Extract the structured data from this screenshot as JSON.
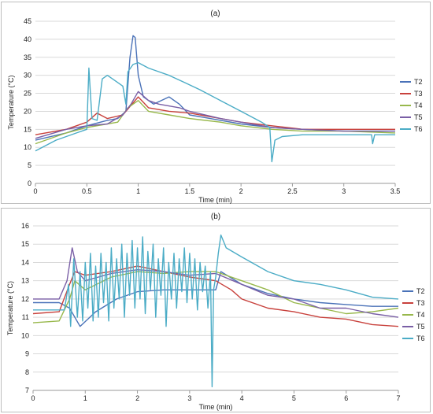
{
  "chart_data": [
    {
      "type": "line",
      "title": "(a)",
      "xlabel": "Time (min)",
      "ylabel": "Temperature (°C)",
      "xlim": [
        0,
        3.5
      ],
      "ylim": [
        0,
        45
      ],
      "xticks": [
        0,
        0.5,
        1,
        1.5,
        2,
        2.5,
        3,
        3.5
      ],
      "xtick_labels": [
        "0",
        "0.5",
        "1",
        "1.5",
        "2",
        "2.5",
        "3",
        "3.5"
      ],
      "yticks": [
        0,
        5,
        10,
        15,
        20,
        25,
        30,
        35,
        40,
        45
      ],
      "ytick_labels": [
        "0",
        "5",
        "10",
        "15",
        "20",
        "25",
        "30",
        "35",
        "40",
        "45"
      ],
      "grid": "horizontal",
      "legend": "right",
      "series": [
        {
          "name": "T2",
          "color": "#4a72b8",
          "points": [
            [
              0,
              12
            ],
            [
              0.3,
              14
            ],
            [
              0.5,
              16
            ],
            [
              0.7,
              17.5
            ],
            [
              0.8,
              18
            ],
            [
              0.88,
              20
            ],
            [
              0.92,
              35
            ],
            [
              0.95,
              41
            ],
            [
              0.97,
              40.5
            ],
            [
              1.0,
              30
            ],
            [
              1.05,
              24
            ],
            [
              1.15,
              22
            ],
            [
              1.3,
              24
            ],
            [
              1.4,
              22
            ],
            [
              1.5,
              19
            ],
            [
              1.7,
              18
            ],
            [
              2.0,
              16.5
            ],
            [
              2.3,
              15.5
            ],
            [
              2.6,
              15
            ],
            [
              3.0,
              14.5
            ],
            [
              3.5,
              14.5
            ]
          ]
        },
        {
          "name": "T3",
          "color": "#c8413c",
          "points": [
            [
              0,
              13.5
            ],
            [
              0.3,
              15
            ],
            [
              0.5,
              17
            ],
            [
              0.6,
              19.5
            ],
            [
              0.7,
              18
            ],
            [
              0.85,
              19
            ],
            [
              1.0,
              24
            ],
            [
              1.1,
              21
            ],
            [
              1.3,
              20
            ],
            [
              1.5,
              19.5
            ],
            [
              1.8,
              18
            ],
            [
              2.0,
              17
            ],
            [
              2.3,
              16
            ],
            [
              2.6,
              15
            ],
            [
              3.0,
              15
            ],
            [
              3.5,
              15
            ]
          ]
        },
        {
          "name": "T4",
          "color": "#98b84c",
          "points": [
            [
              0,
              11
            ],
            [
              0.3,
              14
            ],
            [
              0.5,
              15.5
            ],
            [
              0.8,
              17
            ],
            [
              0.9,
              21
            ],
            [
              1.0,
              23
            ],
            [
              1.1,
              20
            ],
            [
              1.3,
              19
            ],
            [
              1.5,
              18
            ],
            [
              1.8,
              17
            ],
            [
              2.0,
              16
            ],
            [
              2.3,
              15
            ],
            [
              2.6,
              14.5
            ],
            [
              3.0,
              14.5
            ],
            [
              3.5,
              14
            ]
          ]
        },
        {
          "name": "T5",
          "color": "#7a5fa6",
          "points": [
            [
              0,
              12.5
            ],
            [
              0.3,
              15
            ],
            [
              0.5,
              16
            ],
            [
              0.7,
              16.5
            ],
            [
              0.85,
              19
            ],
            [
              0.93,
              22
            ],
            [
              1.0,
              25.5
            ],
            [
              1.1,
              23
            ],
            [
              1.2,
              22
            ],
            [
              1.4,
              21
            ],
            [
              1.5,
              20
            ],
            [
              1.8,
              18
            ],
            [
              2.0,
              17
            ],
            [
              2.3,
              15.5
            ],
            [
              2.6,
              15
            ],
            [
              3.0,
              14.5
            ],
            [
              3.5,
              14.5
            ]
          ]
        },
        {
          "name": "T6",
          "color": "#4bacc6",
          "points": [
            [
              0,
              9
            ],
            [
              0.2,
              12
            ],
            [
              0.4,
              14
            ],
            [
              0.5,
              15
            ],
            [
              0.52,
              32
            ],
            [
              0.55,
              18
            ],
            [
              0.6,
              17.5
            ],
            [
              0.65,
              29
            ],
            [
              0.7,
              30
            ],
            [
              0.8,
              28
            ],
            [
              0.85,
              27
            ],
            [
              0.88,
              22
            ],
            [
              0.9,
              31
            ],
            [
              0.95,
              33
            ],
            [
              1.0,
              33.5
            ],
            [
              1.1,
              32
            ],
            [
              1.2,
              31
            ],
            [
              1.3,
              30
            ],
            [
              1.45,
              28
            ],
            [
              1.6,
              26
            ],
            [
              1.8,
              23
            ],
            [
              2.0,
              20
            ],
            [
              2.2,
              17
            ],
            [
              2.28,
              15.5
            ],
            [
              2.3,
              6
            ],
            [
              2.33,
              12
            ],
            [
              2.4,
              13
            ],
            [
              2.6,
              13.5
            ],
            [
              3.0,
              13.5
            ],
            [
              3.27,
              13.5
            ],
            [
              3.28,
              11
            ],
            [
              3.3,
              13.5
            ],
            [
              3.5,
              13.5
            ]
          ]
        }
      ]
    },
    {
      "type": "line",
      "title": "(b)",
      "xlabel": "Time (min)",
      "ylabel": "Temperature (°C)",
      "xlim": [
        0,
        7
      ],
      "ylim": [
        7,
        16
      ],
      "xticks": [
        0,
        1,
        2,
        3,
        4,
        5,
        6,
        7
      ],
      "xtick_labels": [
        "0",
        "1",
        "2",
        "3",
        "4",
        "5",
        "6",
        "7"
      ],
      "yticks": [
        7,
        8,
        9,
        10,
        11,
        12,
        13,
        14,
        15,
        16
      ],
      "ytick_labels": [
        "7",
        "8",
        "9",
        "10",
        "11",
        "12",
        "13",
        "14",
        "15",
        "16"
      ],
      "grid": "horizontal",
      "legend": "right",
      "series": [
        {
          "name": "T2",
          "color": "#4a72b8",
          "points": [
            [
              0,
              11.8
            ],
            [
              0.5,
              11.8
            ],
            [
              0.7,
              11.5
            ],
            [
              0.9,
              10.5
            ],
            [
              1.2,
              11.3
            ],
            [
              1.6,
              12.0
            ],
            [
              2.0,
              12.4
            ],
            [
              2.5,
              12.5
            ],
            [
              3.0,
              12.5
            ],
            [
              3.5,
              12.5
            ],
            [
              3.6,
              13.5
            ],
            [
              4.0,
              12.8
            ],
            [
              4.5,
              12.3
            ],
            [
              5.0,
              12.0
            ],
            [
              5.5,
              11.8
            ],
            [
              6.0,
              11.7
            ],
            [
              6.5,
              11.6
            ],
            [
              7.0,
              11.6
            ]
          ]
        },
        {
          "name": "T3",
          "color": "#c8413c",
          "points": [
            [
              0,
              11.2
            ],
            [
              0.5,
              11.3
            ],
            [
              0.7,
              12.8
            ],
            [
              0.8,
              13.5
            ],
            [
              1.0,
              13.3
            ],
            [
              1.5,
              13.5
            ],
            [
              2.0,
              13.8
            ],
            [
              2.5,
              13.5
            ],
            [
              3.0,
              13.2
            ],
            [
              3.5,
              13.0
            ],
            [
              3.8,
              12.5
            ],
            [
              4.0,
              12.0
            ],
            [
              4.5,
              11.5
            ],
            [
              5.0,
              11.3
            ],
            [
              5.5,
              11.0
            ],
            [
              6.0,
              10.9
            ],
            [
              6.5,
              10.6
            ],
            [
              7.0,
              10.5
            ]
          ]
        },
        {
          "name": "T4",
          "color": "#98b84c",
          "points": [
            [
              0,
              10.7
            ],
            [
              0.5,
              10.8
            ],
            [
              0.7,
              12.0
            ],
            [
              0.8,
              13.0
            ],
            [
              1.0,
              12.5
            ],
            [
              1.5,
              13.2
            ],
            [
              2.0,
              13.5
            ],
            [
              2.5,
              13.4
            ],
            [
              3.0,
              13.5
            ],
            [
              3.5,
              13.5
            ],
            [
              4.0,
              13.0
            ],
            [
              4.5,
              12.5
            ],
            [
              5.0,
              11.8
            ],
            [
              5.5,
              11.5
            ],
            [
              6.0,
              11.2
            ],
            [
              6.5,
              11.3
            ],
            [
              7.0,
              11.5
            ]
          ]
        },
        {
          "name": "T5",
          "color": "#7a5fa6",
          "points": [
            [
              0,
              12.0
            ],
            [
              0.5,
              12.0
            ],
            [
              0.65,
              13.0
            ],
            [
              0.75,
              14.8
            ],
            [
              0.85,
              13.5
            ],
            [
              1.0,
              13.0
            ],
            [
              1.5,
              13.4
            ],
            [
              2.0,
              13.6
            ],
            [
              2.5,
              13.5
            ],
            [
              3.0,
              13.3
            ],
            [
              3.5,
              13.4
            ],
            [
              4.0,
              12.8
            ],
            [
              4.5,
              12.2
            ],
            [
              5.0,
              12.0
            ],
            [
              5.5,
              11.5
            ],
            [
              6.0,
              11.5
            ],
            [
              6.5,
              11.2
            ],
            [
              7.0,
              11.0
            ]
          ]
        },
        {
          "name": "T6",
          "color": "#4bacc6",
          "points": [
            [
              0,
              11.4
            ],
            [
              0.6,
              11.4
            ],
            [
              0.68,
              12.8
            ],
            [
              0.72,
              10.5
            ],
            [
              0.78,
              14.2
            ],
            [
              0.85,
              11.0
            ],
            [
              0.9,
              13.5
            ],
            [
              0.95,
              10.8
            ],
            [
              1.0,
              14.0
            ],
            [
              1.05,
              11.5
            ],
            [
              1.1,
              14.5
            ],
            [
              1.15,
              10.8
            ],
            [
              1.2,
              13.8
            ],
            [
              1.25,
              11.0
            ],
            [
              1.3,
              14.5
            ],
            [
              1.35,
              11.8
            ],
            [
              1.4,
              14.0
            ],
            [
              1.45,
              10.8
            ],
            [
              1.5,
              14.8
            ],
            [
              1.55,
              11.5
            ],
            [
              1.6,
              14.2
            ],
            [
              1.65,
              12.0
            ],
            [
              1.7,
              15.0
            ],
            [
              1.75,
              11.0
            ],
            [
              1.8,
              14.5
            ],
            [
              1.85,
              12.2
            ],
            [
              1.9,
              15.2
            ],
            [
              1.95,
              11.5
            ],
            [
              2.0,
              14.8
            ],
            [
              2.05,
              12.0
            ],
            [
              2.1,
              15.4
            ],
            [
              2.15,
              11.2
            ],
            [
              2.2,
              14.6
            ],
            [
              2.25,
              12.5
            ],
            [
              2.3,
              15.0
            ],
            [
              2.35,
              11.0
            ],
            [
              2.4,
              14.2
            ],
            [
              2.45,
              12.2
            ],
            [
              2.5,
              14.8
            ],
            [
              2.55,
              10.5
            ],
            [
              2.6,
              14.0
            ],
            [
              2.65,
              12.0
            ],
            [
              2.7,
              14.5
            ],
            [
              2.75,
              11.5
            ],
            [
              2.8,
              14.2
            ],
            [
              2.85,
              12.4
            ],
            [
              2.9,
              14.8
            ],
            [
              2.95,
              11.8
            ],
            [
              3.0,
              14.5
            ],
            [
              3.05,
              12.0
            ],
            [
              3.1,
              14.2
            ],
            [
              3.15,
              11.4
            ],
            [
              3.2,
              14.0
            ],
            [
              3.25,
              12.4
            ],
            [
              3.3,
              13.8
            ],
            [
              3.35,
              11.5
            ],
            [
              3.4,
              13.5
            ],
            [
              3.43,
              7.2
            ],
            [
              3.46,
              12.5
            ],
            [
              3.5,
              13.2
            ],
            [
              3.55,
              14.5
            ],
            [
              3.6,
              15.5
            ],
            [
              3.7,
              14.8
            ],
            [
              4.0,
              14.3
            ],
            [
              4.5,
              13.5
            ],
            [
              5.0,
              13.0
            ],
            [
              5.5,
              12.8
            ],
            [
              6.0,
              12.5
            ],
            [
              6.5,
              12.1
            ],
            [
              7.0,
              12.0
            ]
          ]
        }
      ]
    }
  ]
}
